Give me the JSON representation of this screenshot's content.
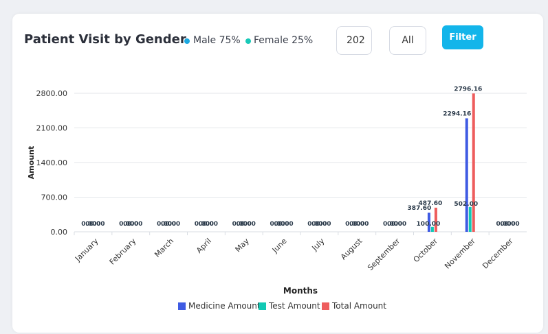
{
  "header": {
    "title": "Patient Visit by Gender",
    "legend": [
      {
        "label": "Male 75%",
        "color": "#1ba8e0"
      },
      {
        "label": "Female 25%",
        "color": "#19c9b8"
      }
    ],
    "year_value": "202",
    "select_value": "All",
    "filter_label": "Filter"
  },
  "chart_data": {
    "type": "bar",
    "categories": [
      "January",
      "February",
      "March",
      "April",
      "May",
      "June",
      "July",
      "August",
      "September",
      "October",
      "November",
      "December"
    ],
    "series": [
      {
        "name": "Medicine Amount",
        "color": "#3f5be3",
        "values": [
          0,
          0,
          0,
          0,
          0,
          0,
          0,
          0,
          0,
          387.6,
          2294.16,
          0
        ],
        "labels": [
          "0.00",
          "0.00",
          "0.00",
          "0.00",
          "0.00",
          "0.00",
          "0.00",
          "0.00",
          "0.00",
          "387.60",
          "2294.16",
          "0.00"
        ]
      },
      {
        "name": "Test Amount",
        "color": "#12c9b4",
        "values": [
          0,
          0,
          0,
          0,
          0,
          0,
          0,
          0,
          0,
          100.0,
          502.0,
          0
        ],
        "labels": [
          "0.00",
          "0.00",
          "0.00",
          "0.00",
          "0.00",
          "0.00",
          "0.00",
          "0.00",
          "0.00",
          "100.00",
          "502.00",
          "0.00"
        ]
      },
      {
        "name": "Total Amount",
        "color": "#ee5d5d",
        "values": [
          0,
          0,
          0,
          0,
          0,
          0,
          0,
          0,
          0,
          487.6,
          2796.16,
          0
        ],
        "labels": [
          "0.00",
          "0.00",
          "0.00",
          "0.00",
          "0.00",
          "0.00",
          "0.00",
          "0.00",
          "0.00",
          "487.60",
          "2796.16",
          "0.00"
        ]
      }
    ],
    "yticks": [
      "0.00",
      "700.00",
      "1400.00",
      "2100.00",
      "2800.00"
    ],
    "ylim": [
      0,
      2800
    ],
    "xlabel": "Months",
    "ylabel": "Amount",
    "grid": true,
    "legend_position": "bottom"
  }
}
